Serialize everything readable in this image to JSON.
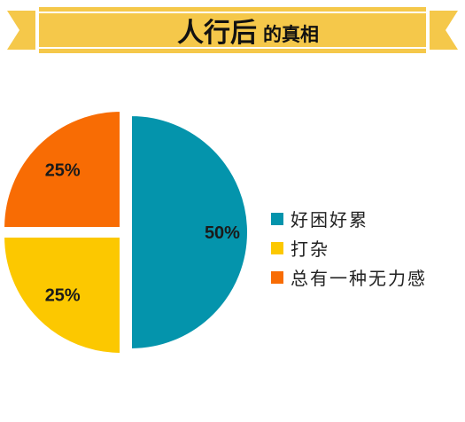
{
  "banner": {
    "title_main": "人行后",
    "title_sub": "的真相"
  },
  "chart_data": {
    "type": "pie",
    "slices": [
      {
        "label": "好困好累",
        "value": 50,
        "value_label": "50%",
        "color": "#0494ac"
      },
      {
        "label": "打杂",
        "value": 25,
        "value_label": "25%",
        "color": "#fcc800"
      },
      {
        "label": "总有一种无力感",
        "value": 25,
        "value_label": "25%",
        "color": "#f86c04"
      }
    ],
    "legend_position": "right"
  },
  "colors": {
    "banner_fill": "#f5c84a",
    "banner_stripe": "#ffffff",
    "page_bg": "#ffffff"
  }
}
